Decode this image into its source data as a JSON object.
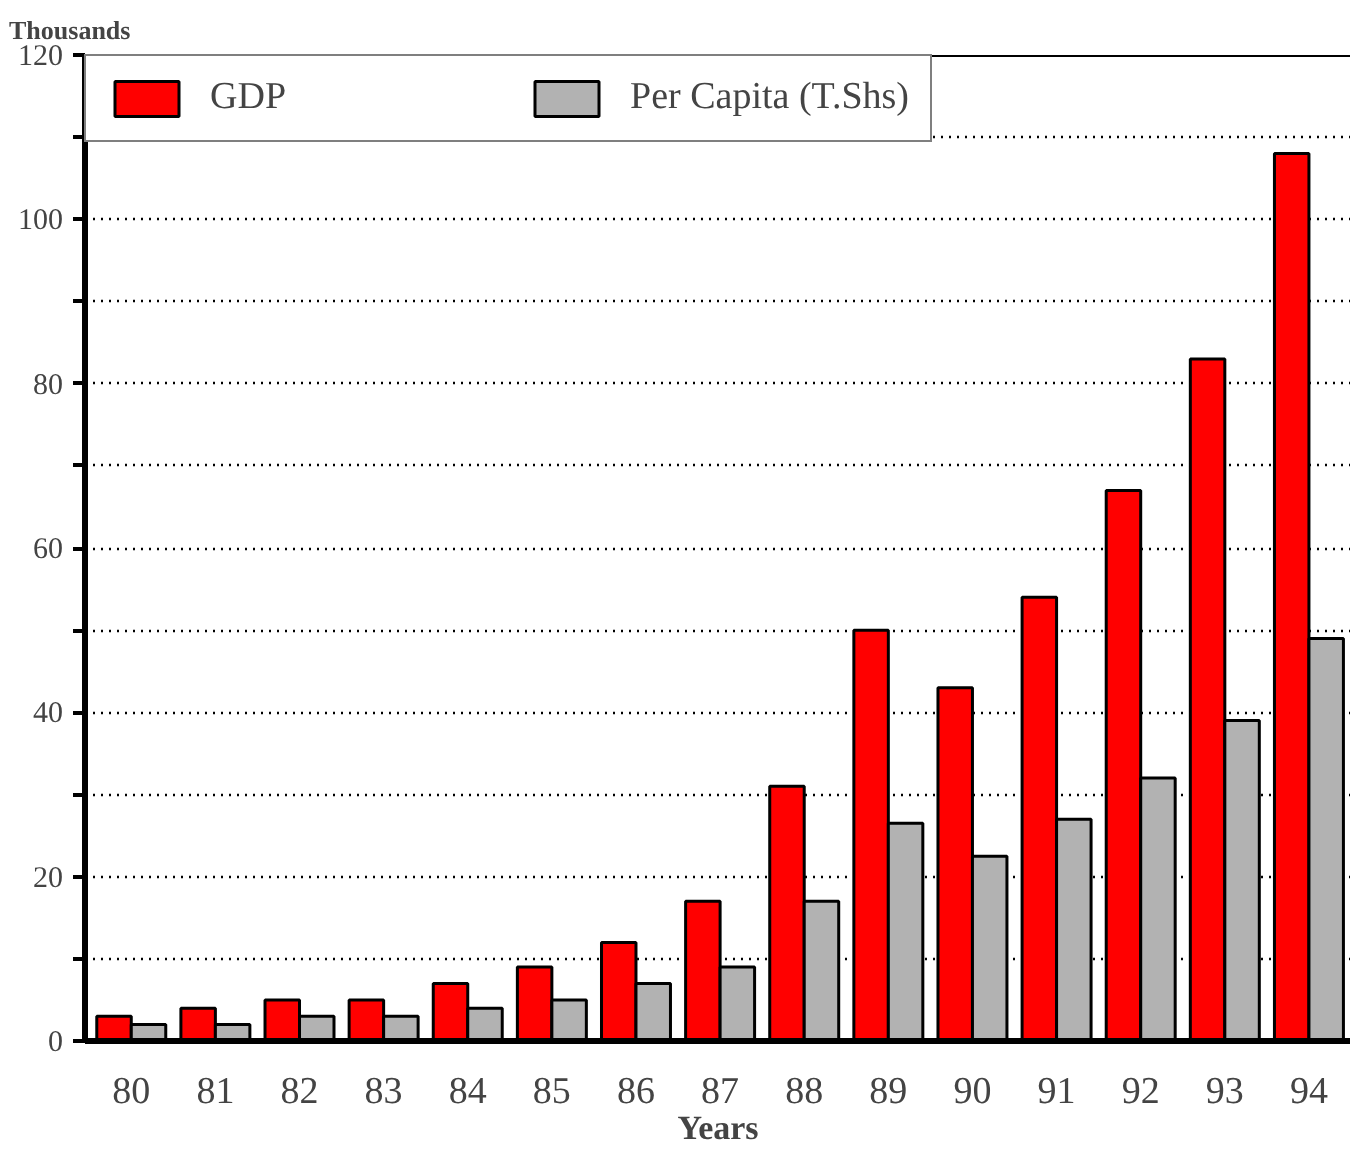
{
  "chart_data": {
    "type": "bar",
    "ylabel": "Thousands",
    "xlabel": "Years",
    "categories": [
      "80",
      "81",
      "82",
      "83",
      "84",
      "85",
      "86",
      "87",
      "88",
      "89",
      "90",
      "91",
      "92",
      "93",
      "94"
    ],
    "series": [
      {
        "name": "GDP",
        "color": "#ff0000",
        "values": [
          3,
          4,
          5,
          5,
          7,
          9,
          12,
          17,
          31,
          50,
          43,
          54,
          67,
          83,
          108
        ]
      },
      {
        "name": "Per Capita (T.Shs)",
        "color": "#b2b2b2",
        "values": [
          2,
          2,
          3,
          3,
          4,
          5,
          7,
          9,
          17,
          26.5,
          22.5,
          27,
          32,
          39,
          49
        ]
      }
    ],
    "ylim": [
      0,
      120
    ],
    "yticks": [
      0,
      {
        "value": 10,
        "label": null
      },
      20,
      {
        "value": 30,
        "label": null
      },
      40,
      {
        "value": 50,
        "label": null
      },
      60,
      {
        "value": 70,
        "label": null
      },
      80,
      {
        "value": 90,
        "label": null
      },
      100,
      {
        "value": 110,
        "label": null
      },
      120
    ],
    "grid": "y",
    "legend": "top left"
  }
}
